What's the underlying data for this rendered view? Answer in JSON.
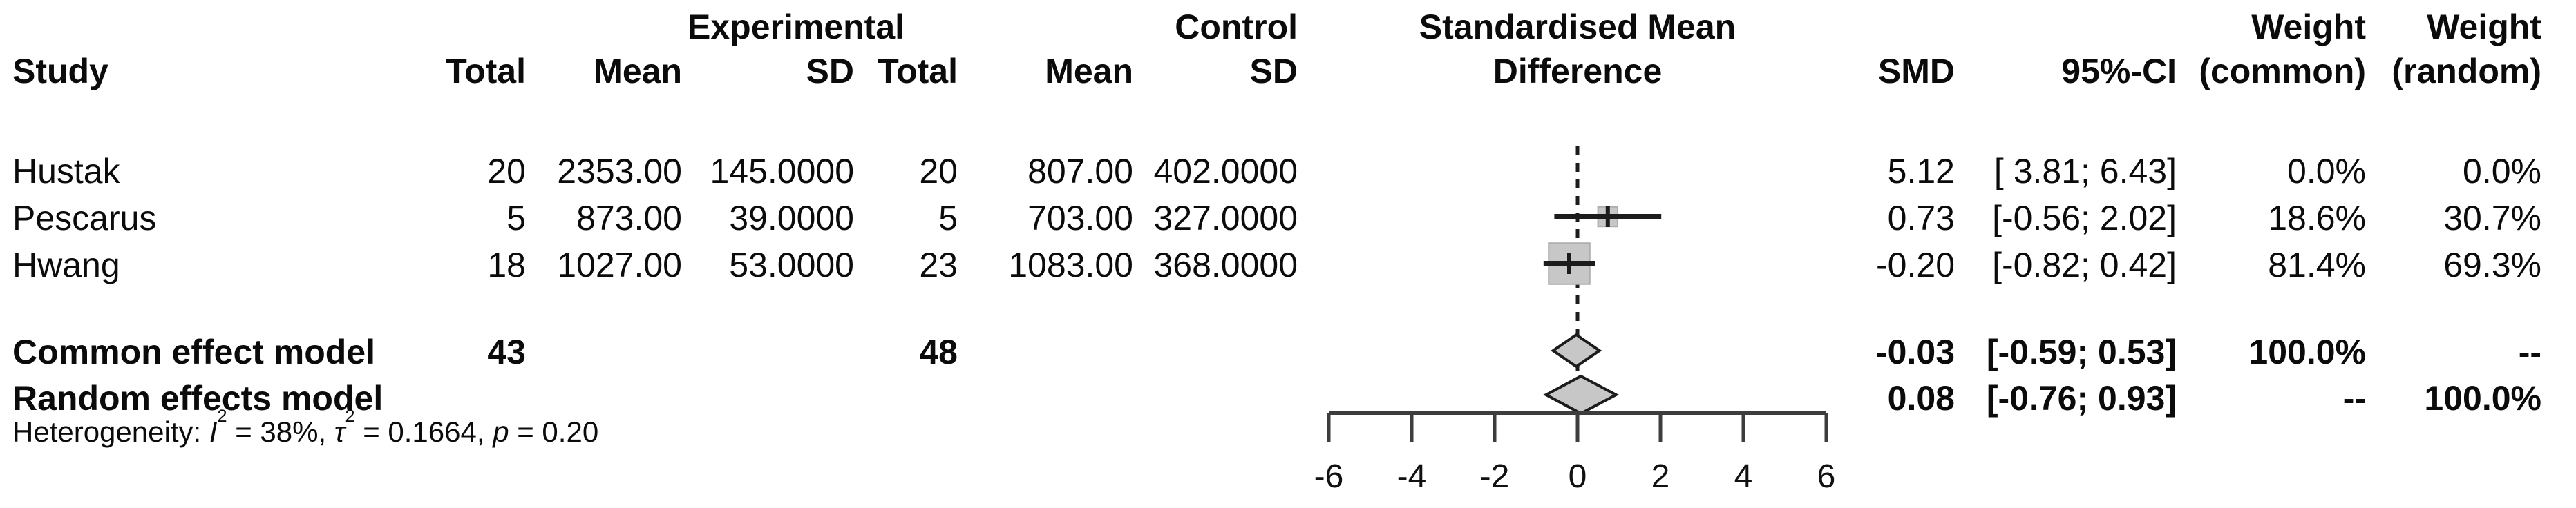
{
  "header": {
    "group_experimental": "Experimental",
    "group_control": "Control",
    "forest_title_line1": "Standardised Mean",
    "forest_title_line2": "Difference",
    "weight_common_line1": "Weight",
    "weight_random_line1": "Weight",
    "study": "Study",
    "exp_total": "Total",
    "exp_mean": "Mean",
    "exp_sd": "SD",
    "ctl_total": "Total",
    "ctl_mean": "Mean",
    "ctl_sd": "SD",
    "smd": "SMD",
    "ci": "95%-CI",
    "weight_common_line2": "(common)",
    "weight_random_line2": "(random)"
  },
  "rows": [
    {
      "study": "Hustak",
      "exp_total": "20",
      "exp_mean": "2353.00",
      "exp_sd": "145.0000",
      "ctl_total": "20",
      "ctl_mean": "807.00",
      "ctl_sd": "402.0000",
      "smd": "5.12",
      "ci": "[ 3.81; 6.43]",
      "w_common": "0.0%",
      "w_random": "0.0%"
    },
    {
      "study": "Pescarus",
      "exp_total": "5",
      "exp_mean": "873.00",
      "exp_sd": "39.0000",
      "ctl_total": "5",
      "ctl_mean": "703.00",
      "ctl_sd": "327.0000",
      "smd": "0.73",
      "ci": "[-0.56; 2.02]",
      "w_common": "18.6%",
      "w_random": "30.7%"
    },
    {
      "study": "Hwang",
      "exp_total": "18",
      "exp_mean": "1027.00",
      "exp_sd": "53.0000",
      "ctl_total": "23",
      "ctl_mean": "1083.00",
      "ctl_sd": "368.0000",
      "smd": "-0.20",
      "ci": "[-0.82; 0.42]",
      "w_common": "81.4%",
      "w_random": "69.3%"
    }
  ],
  "summary_rows": [
    {
      "label": "Common effect model",
      "exp_total": "43",
      "ctl_total": "48",
      "smd": "-0.03",
      "ci": "[-0.59; 0.53]",
      "w_common": "100.0%",
      "w_random": "--"
    },
    {
      "label": "Random effects model",
      "exp_total": "",
      "ctl_total": "",
      "smd": "0.08",
      "ci": "[-0.76; 0.93]",
      "w_common": "--",
      "w_random": "100.0%"
    }
  ],
  "heterogeneity_text": {
    "prefix": "Heterogeneity: ",
    "i_sym": "I",
    "i_sup": "2",
    "seg1": " = 38%, ",
    "tau_sym": "τ",
    "tau_sup": "2",
    "seg2": " = 0.1664, ",
    "p_sym": "p",
    "seg3": " = 0.20"
  },
  "chart_data": {
    "type": "forest",
    "title": "Standardised Mean Difference",
    "axis": {
      "xlim": [
        -6,
        6
      ],
      "ticks": [
        -6,
        -4,
        -2,
        0,
        2,
        4,
        6
      ]
    },
    "zero_line": 0,
    "studies": [
      {
        "name": "Hustak",
        "smd": 5.12,
        "ci": [
          3.81,
          6.43
        ],
        "weight_common_pct": 0.0,
        "weight_random_pct": 0.0,
        "marker_visible": false
      },
      {
        "name": "Pescarus",
        "smd": 0.73,
        "ci": [
          -0.56,
          2.02
        ],
        "weight_common_pct": 18.6,
        "weight_random_pct": 30.7,
        "marker_visible": true
      },
      {
        "name": "Hwang",
        "smd": -0.2,
        "ci": [
          -0.82,
          0.42
        ],
        "weight_common_pct": 81.4,
        "weight_random_pct": 69.3,
        "marker_visible": true
      }
    ],
    "summaries": [
      {
        "name": "Common effect model",
        "model": "common",
        "smd": -0.03,
        "ci": [
          -0.59,
          0.53
        ],
        "weight_common_pct": 100.0,
        "weight_random_pct": null
      },
      {
        "name": "Random effects model",
        "model": "random",
        "smd": 0.08,
        "ci": [
          -0.76,
          0.93
        ],
        "weight_common_pct": null,
        "weight_random_pct": 100.0
      }
    ],
    "heterogeneity": {
      "I2_pct": 38,
      "tau2": 0.1664,
      "p": 0.2
    },
    "colors": {
      "marker_fill": "#c7c7c7",
      "line": "#1c1c1c",
      "axis": "#3d3d3d"
    }
  }
}
